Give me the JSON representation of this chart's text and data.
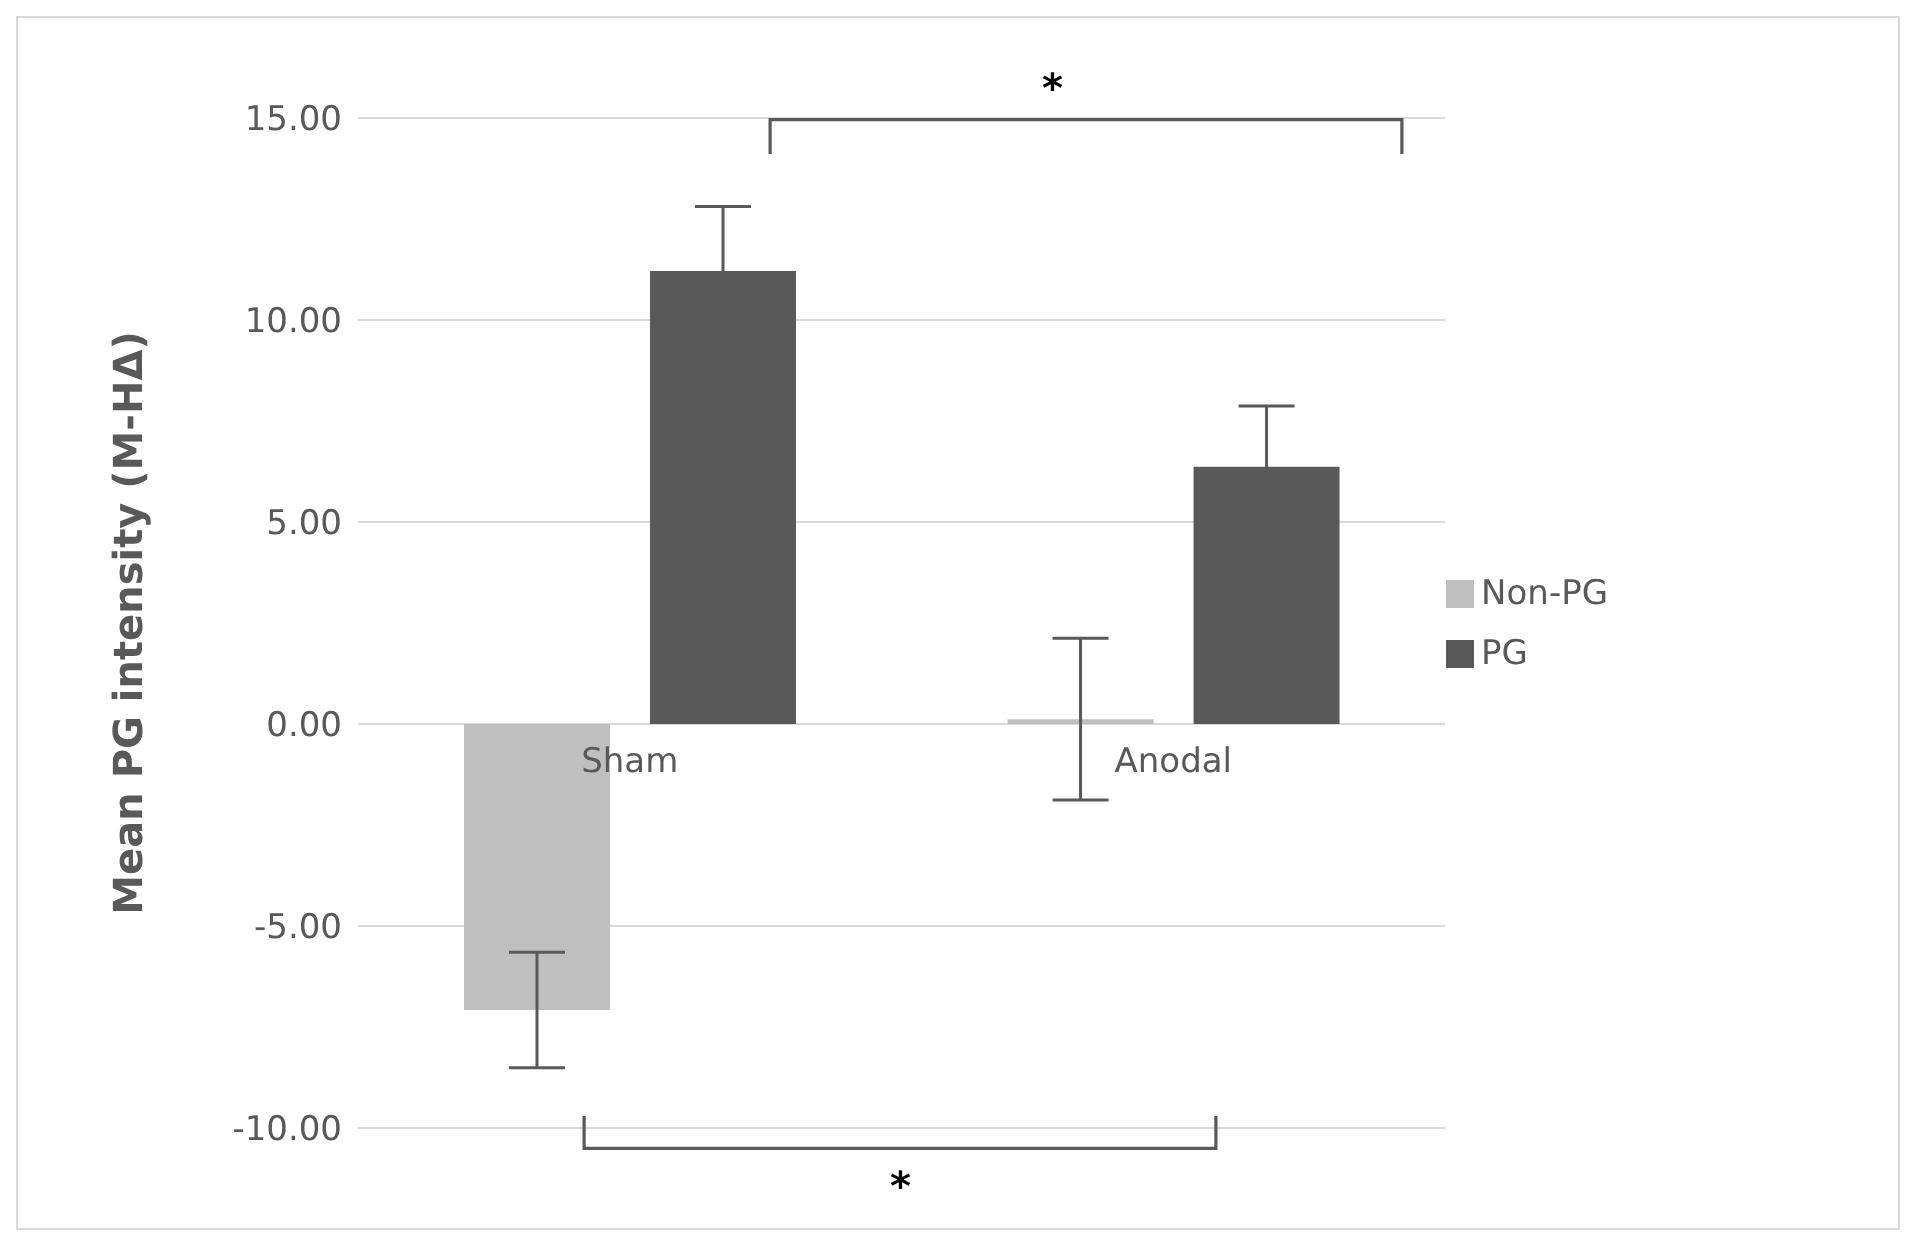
{
  "chart_data": {
    "type": "bar",
    "ylabel": "Mean PG intensity (M-HΔ)",
    "categories": [
      "Sham",
      "Anodal"
    ],
    "series": [
      {
        "name": "Non-PG",
        "color": "#bfbfbf",
        "values": [
          -7.08,
          0.12
        ],
        "errors": [
          1.43,
          2.0
        ]
      },
      {
        "name": "PG",
        "color": "#595959",
        "values": [
          11.21,
          6.37
        ],
        "errors": [
          1.6,
          1.5
        ]
      }
    ],
    "ylim": [
      -10,
      15
    ],
    "yticks": [
      {
        "value": -10,
        "label": "-10.00"
      },
      {
        "value": -5,
        "label": "-5.00"
      },
      {
        "value": 0,
        "label": "0.00"
      },
      {
        "value": 5,
        "label": "5.00"
      },
      {
        "value": 10,
        "label": "10.00"
      },
      {
        "value": 15,
        "label": "15.00"
      }
    ],
    "grid": "y",
    "legend": "right",
    "annotations": [
      "*",
      "*"
    ]
  }
}
